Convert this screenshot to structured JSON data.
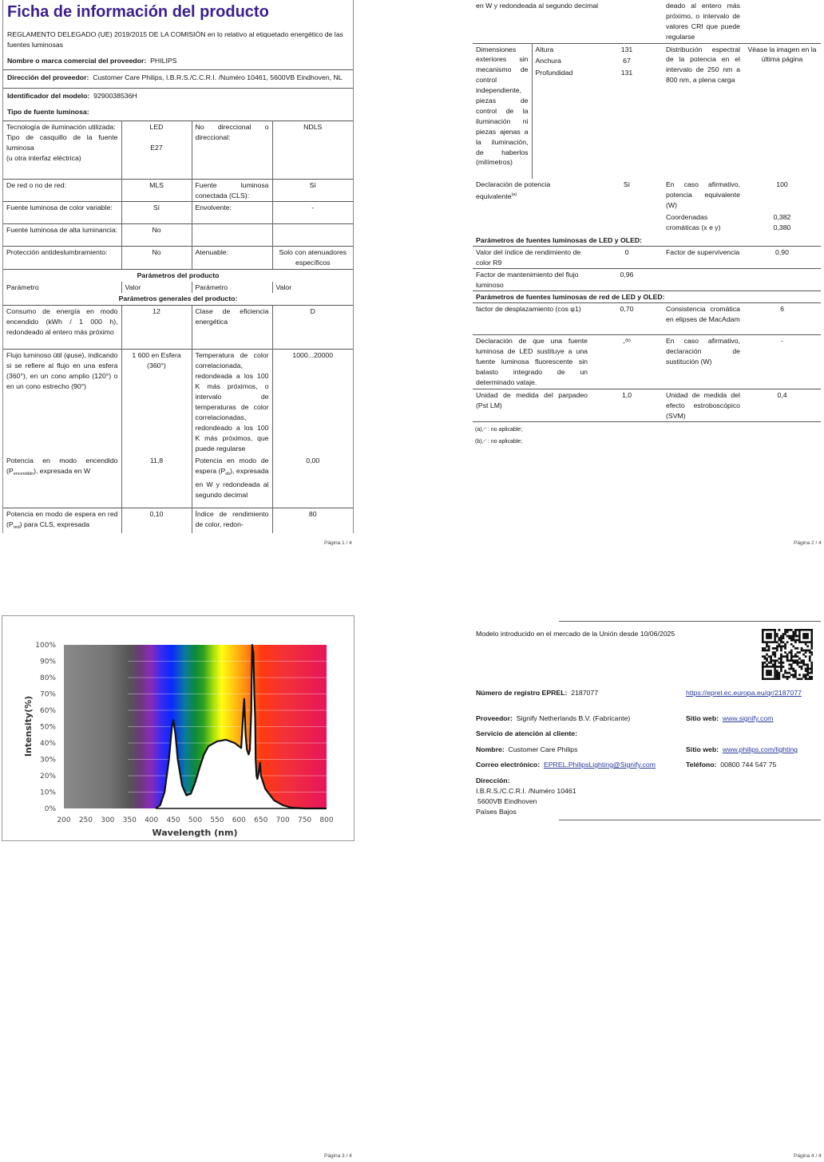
{
  "page1": {
    "title": "Ficha de información del producto",
    "regulation": "REGLAMENTO DELEGADO (UE) 2019/2015 DE LA COMISIÓN en lo relativo al etiquetado energético de las fuentes luminosas",
    "brand_label": "Nombre o marca comercial del proveedor:",
    "brand_value": "PHILIPS",
    "address_label": "Dirección del proveedor:",
    "address_value": "Customer Care Philips, I.B.R.S./C.C.R.I. /Numéro 10461, 5600VB Eindhoven, NL",
    "model_label": "Identificador del modelo:",
    "model_value": "9290038536H",
    "type_label": "Tipo de fuente luminosa:",
    "type_rows": [
      {
        "p1": "Tecnología de iluminación utilizada:",
        "v1": "LED",
        "p2": "No direccional o direccional:",
        "v2": "NDLS",
        "p1b": "Tipo de casquillo de la fuente luminosa",
        "v1b": "E27",
        "p1c": "(u otra interfaz eléctrica)"
      },
      {
        "p1": "De red o no de red:",
        "v1": "MLS",
        "p2": "Fuente luminosa conectada (CLS):",
        "v2": "Sí"
      },
      {
        "p1": "Fuente luminosa de color variable:",
        "v1": "Sí",
        "p2": "Envolvente:",
        "v2": "-"
      },
      {
        "p1": "Fuente luminosa de alta luminancia:",
        "v1": "No",
        "p2": "",
        "v2": ""
      },
      {
        "p1": "Protección antideslumbramiento:",
        "v1": "No",
        "p2": "Atenuable:",
        "v2": "Solo con atenuadores específicos"
      }
    ],
    "params_title": "Parámetros del producto",
    "col_headers": [
      "Parámetro",
      "Valor",
      "Parámetro",
      "Valor"
    ],
    "general_title": "Parámetros generales del producto:",
    "general_rows": [
      {
        "p1": "Consumo de energía en modo encendido (kWh / 1 000 h), redondeado al entero más próximo",
        "v1": "12",
        "p2": "Clase de eficiencia energética",
        "v2": "D"
      },
      {
        "p1": "Flujo luminoso útil (φuse), indicando si se refiere al flujo en una esfera (360°), en un cono amplio (120°) o en un cono estrecho (90°)",
        "v1": "1 600 en Esfera (360°)",
        "p2": "Temperatura de color correlacionada, redondeada a los 100 K más próximos, o intervalo de temperaturas de color correlacionadas, redondeado a los 100 K más próximos, que puede regularse",
        "v2": "1000...20000"
      },
      {
        "p1_pre": "Potencia en modo encendido (P",
        "p1_sub": "encendido",
        "p1_post": "), expresada en W",
        "v1": "11,8",
        "p2_pre": "Potencia en modo de espera (P",
        "p2_sub": "sb",
        "p2_post": "), expresada en W y redondeada al segundo decimal",
        "v2": "0,00"
      },
      {
        "p1_pre": "Potencia en modo de espera en red (P",
        "p1_sub": "red",
        "p1_post": ") para CLS, expresada",
        "v1": "0,10",
        "p2": "Índice de rendimiento de color, redon-",
        "v2": "80"
      }
    ],
    "page_number": "Página 1 / 4"
  },
  "page2": {
    "cont_left": "en W y redondeada al segundo decimal",
    "cont_right": "deado al entero más próximo, o intervalo de valores CRI que puede regularse",
    "dims_label": "Dimensiones exteriores sin mecanismo de control independiente, piezas de control de la iluminación ni piezas ajenas a la iluminación, de haberlos (milímetros)",
    "dims": [
      {
        "label": "Altura",
        "value": "131"
      },
      {
        "label": "Anchura",
        "value": "67"
      },
      {
        "label": "Profundidad",
        "value": "131"
      }
    ],
    "spd_label": "Distribución espectral de la potencia en el intervalo de 250 nm a 800 nm, a plena carga",
    "spd_value": "Véase la imagen en la última página",
    "equiv_label": "Declaración de potencia equivalente",
    "equiv_sup": "(a)",
    "equiv_value": "Sí",
    "equiv_w_label": "En caso afirmativo, potencia equivalente (W)",
    "equiv_w_value": "100",
    "chroma_label": "Coordenadas cromáticas (x e y)",
    "chroma_x": "0,382",
    "chroma_y": "0,380",
    "led_title": "Parámetros de fuentes luminosas de LED y OLED:",
    "led_rows": [
      {
        "p1": "Valor del índice de rendimiento de color R9",
        "v1": "0",
        "p2": "Factor de supervivencia",
        "v2": "0,90"
      },
      {
        "p1": "Factor de mantenimiento del flujo luminoso",
        "v1": "0,96",
        "p2": "",
        "v2": ""
      }
    ],
    "mains_title": "Parámetros de fuentes luminosas de red de LED y OLED:",
    "mains_rows": [
      {
        "p1": "factor de desplazamiento (cos φ1)",
        "v1": "0,70",
        "v1_sup": "",
        "p2": "Consistencia cromática en elipses de MacAdam",
        "v2": "6"
      },
      {
        "p1": "Declaración de que una fuente luminosa de LED sustituye a una fuente luminosa fluorescente sin balasto integrado de un determinado vataje.",
        "v1": "-",
        "v1_sup": "(b)",
        "p2": "En caso afirmativo, declaración de sustitución (W)",
        "v2": "-"
      },
      {
        "p1": "Unidad de medida del parpadeo (Pst LM)",
        "v1": "1,0",
        "v1_sup": "",
        "p2": "Unidad de medida del efecto estroboscópico (SVM)",
        "v2": "0,4"
      }
    ],
    "footnotes": [
      "(a)‚-‘ : no aplicable;",
      "(b)‚-‘ : no aplicable;"
    ],
    "page_number": "Página 2 / 4"
  },
  "page3": {
    "page_number": "Página 3 / 4"
  },
  "page4": {
    "market_date": "Modelo introducido en el mercado de la Unión desde 10/06/2025",
    "eprel_label": "Número de registro EPREL:",
    "eprel_value": "2187077",
    "eprel_link": "https://eprel.ec.europa.eu/qr/2187077",
    "supplier_label": "Proveedor:",
    "supplier_value": "Signify Netherlands B.V. (Fabricante)",
    "website_label": "Sitio web:",
    "supplier_website": "www.signify.com",
    "service_title": "Servicio de atención al cliente:",
    "name_label": "Nombre:",
    "name_value": "Customer Care Philips",
    "service_website": "www.philips.com/lighting",
    "email_label": "Correo electrónico:",
    "email_value": "EPREL.PhilipsLighting@Signify.com",
    "phone_label": "Teléfono:",
    "phone_value": "00800 744 547 75",
    "address_label": "Dirección:",
    "address_lines": [
      "I.B.R.S./C.C.R.I. /Numéro 10461",
      "5600VB Eindhoven",
      "Países Bajos"
    ],
    "page_number": "Página 4 / 4"
  },
  "chart_data": {
    "type": "line",
    "xlabel": "Wavelength (nm)",
    "ylabel": "Intensity(%)",
    "xlim": [
      200,
      800
    ],
    "ylim": [
      0,
      100
    ],
    "x_ticks": [
      "200",
      "250",
      "300",
      "350",
      "400",
      "450",
      "500",
      "550",
      "600",
      "650",
      "700",
      "750",
      "800"
    ],
    "y_ticks": [
      "0%",
      "10%",
      "20%",
      "30%",
      "40%",
      "50%",
      "60%",
      "70%",
      "80%",
      "90%",
      "100%"
    ],
    "grid": true,
    "background": "visible-spectrum gradient",
    "series": [
      {
        "x": [
          410,
          420,
          430,
          440,
          447,
          450,
          455,
          460,
          470,
          480,
          490,
          500,
          510,
          520,
          530,
          550,
          570,
          590,
          605,
          607,
          610,
          612,
          615,
          618,
          622,
          625,
          628,
          630,
          633,
          635,
          637,
          638,
          640,
          642,
          645,
          648,
          650,
          660,
          680,
          700,
          720,
          750,
          800
        ],
        "y": [
          0,
          2,
          10,
          30,
          50,
          54,
          45,
          30,
          14,
          8,
          9,
          16,
          25,
          33,
          38,
          41,
          42,
          40,
          37,
          46,
          60,
          67,
          45,
          36,
          33,
          36,
          60,
          100,
          95,
          70,
          55,
          30,
          20,
          18,
          22,
          28,
          20,
          12,
          5,
          2,
          0.5,
          0,
          0
        ]
      }
    ]
  }
}
